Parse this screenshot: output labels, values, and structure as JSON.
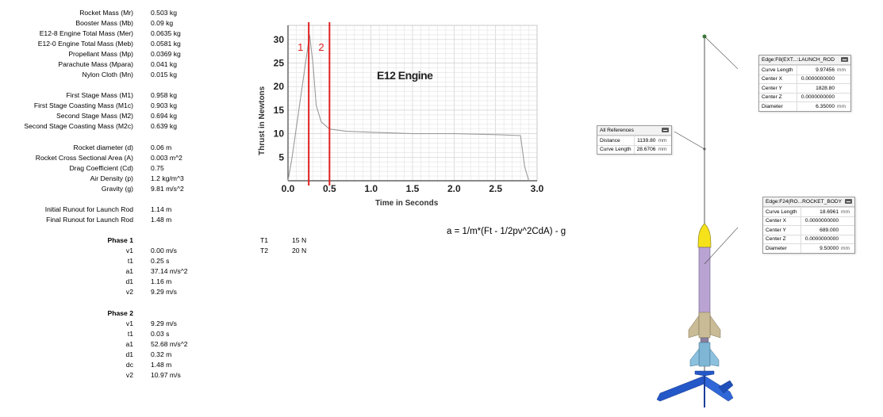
{
  "variables": [
    {
      "label": "Rocket Mass (Mr)",
      "value": "0.503",
      "unit": "kg"
    },
    {
      "label": "Booster Mass (Mb)",
      "value": "0.09",
      "unit": "kg"
    },
    {
      "label": "E12-8 Engine Total Mass (Mer)",
      "value": "0.0635",
      "unit": "kg"
    },
    {
      "label": "E12-0 Engine Total Mass (Meb)",
      "value": "0.0581",
      "unit": "kg"
    },
    {
      "label": "Propellant Mass (Mp)",
      "value": "0.0369",
      "unit": "kg"
    },
    {
      "label": "Parachute Mass (Mpara)",
      "value": "0.041",
      "unit": "kg"
    },
    {
      "label": "Nylon Cloth (Mn)",
      "value": "0.015",
      "unit": "kg"
    },
    {
      "label": "First Stage Mass (M1)",
      "value": "0.958",
      "unit": "kg"
    },
    {
      "label": "First Stage Coasting Mass (M1c)",
      "value": "0.903",
      "unit": "kg"
    },
    {
      "label": "Second Stage Mass (M2)",
      "value": "0.694",
      "unit": "kg"
    },
    {
      "label": "Second Stage Coasting Mass (M2c)",
      "value": "0.639",
      "unit": "kg"
    },
    {
      "label": "Rocket diameter (d)",
      "value": "0.06",
      "unit": "m"
    },
    {
      "label": "Rocket Cross Sectional Area (A)",
      "value": "0.003",
      "unit": "m^2"
    },
    {
      "label": "Drag Coefficient (Cd)",
      "value": "0.75",
      "unit": ""
    },
    {
      "label": "Air Density (p)",
      "value": "1.2",
      "unit": "kg/m^3"
    },
    {
      "label": "Gravity (g)",
      "value": "9.81",
      "unit": "m/s^2"
    },
    {
      "label": "Initial Runout for Launch Rod",
      "value": "1.14",
      "unit": "m"
    },
    {
      "label": "Final Runout for Launch Rod",
      "value": "1.48",
      "unit": "m"
    }
  ],
  "phase1": {
    "title": "Phase 1",
    "rows": [
      {
        "label": "v1",
        "value": "0.00",
        "unit": "m/s"
      },
      {
        "label": "t1",
        "value": "0.25",
        "unit": "s"
      },
      {
        "label": "a1",
        "value": "37.14",
        "unit": "m/s^2"
      },
      {
        "label": "d1",
        "value": "1.16",
        "unit": "m"
      },
      {
        "label": "v2",
        "value": "9.29",
        "unit": "m/s"
      }
    ]
  },
  "phase2": {
    "title": "Phase 2",
    "rows": [
      {
        "label": "v1",
        "value": "9.29",
        "unit": "m/s"
      },
      {
        "label": "t1",
        "value": "0.03",
        "unit": "s"
      },
      {
        "label": "a1",
        "value": "52.68",
        "unit": "m/s^2"
      },
      {
        "label": "d1",
        "value": "0.32",
        "unit": "m"
      },
      {
        "label": "dc",
        "value": "1.48",
        "unit": "m"
      },
      {
        "label": "v2",
        "value": "10.97",
        "unit": "m/s"
      }
    ]
  },
  "thrust": [
    {
      "label": "T1",
      "value": "15",
      "unit": "N"
    },
    {
      "label": "T2",
      "value": "20",
      "unit": "N"
    }
  ],
  "formula": "a = 1/m*(Ft - 1/2pv^2CdA) - g",
  "chart_data": {
    "type": "line",
    "title": "E12 Engine",
    "xlabel": "Time in Seconds",
    "ylabel": "Thrust in Newtons",
    "xlim": [
      0,
      3.0
    ],
    "ylim": [
      0,
      33
    ],
    "xticks": [
      "0.0",
      "0.5",
      "1.0",
      "1.5",
      "2.0",
      "2.5",
      "3.0"
    ],
    "yticks": [
      "5",
      "10",
      "15",
      "20",
      "25",
      "30"
    ],
    "grid": true,
    "x": [
      0,
      0.05,
      0.26,
      0.3,
      0.34,
      0.4,
      0.5,
      0.7,
      1.0,
      1.5,
      2.0,
      2.5,
      2.8,
      2.85,
      2.9
    ],
    "y": [
      0,
      5,
      31,
      25,
      16,
      12.5,
      11,
      10.5,
      10.3,
      10,
      10,
      9.8,
      9.6,
      3,
      0
    ],
    "markers": [
      {
        "label": "1",
        "x": 0.25,
        "color": "#e02020"
      },
      {
        "label": "2",
        "x": 0.5,
        "color": "#e02020"
      }
    ]
  },
  "ref_box": {
    "title": "All References",
    "rows": [
      {
        "key": "Distance",
        "value": "1139.80",
        "unit": "mm"
      },
      {
        "key": "Curve Length",
        "value": "28.6706",
        "unit": "mm"
      }
    ]
  },
  "edge_box1": {
    "title": "Edge:F8(EXT...:LAUNCH_ROD",
    "rows": [
      {
        "key": "Curve Length",
        "value": "9.97456",
        "unit": "mm"
      },
      {
        "key": "Center X",
        "value": "0.0000000000",
        "unit": ""
      },
      {
        "key": "Center Y",
        "value": "1828.80",
        "unit": ""
      },
      {
        "key": "Center Z",
        "value": "0.0000000000",
        "unit": ""
      },
      {
        "key": "Diameter",
        "value": "6.35000",
        "unit": "mm"
      }
    ]
  },
  "edge_box2": {
    "title": "Edge:F24(RO...ROCKET_BODY",
    "rows": [
      {
        "key": "Curve Length",
        "value": "18.6961",
        "unit": "mm"
      },
      {
        "key": "Center X",
        "value": "0.0000000000",
        "unit": ""
      },
      {
        "key": "Center Y",
        "value": "689.000",
        "unit": ""
      },
      {
        "key": "Center Z",
        "value": "0.0000000000",
        "unit": ""
      },
      {
        "key": "Diameter",
        "value": "9.50000",
        "unit": "mm"
      }
    ]
  },
  "colors": {
    "nose": "#f5e21a",
    "body": "#b9a3d3",
    "fin": "#c9bb96",
    "booster": "#7fb6d5",
    "stand": "#2457c7",
    "marker": "#e02020"
  }
}
